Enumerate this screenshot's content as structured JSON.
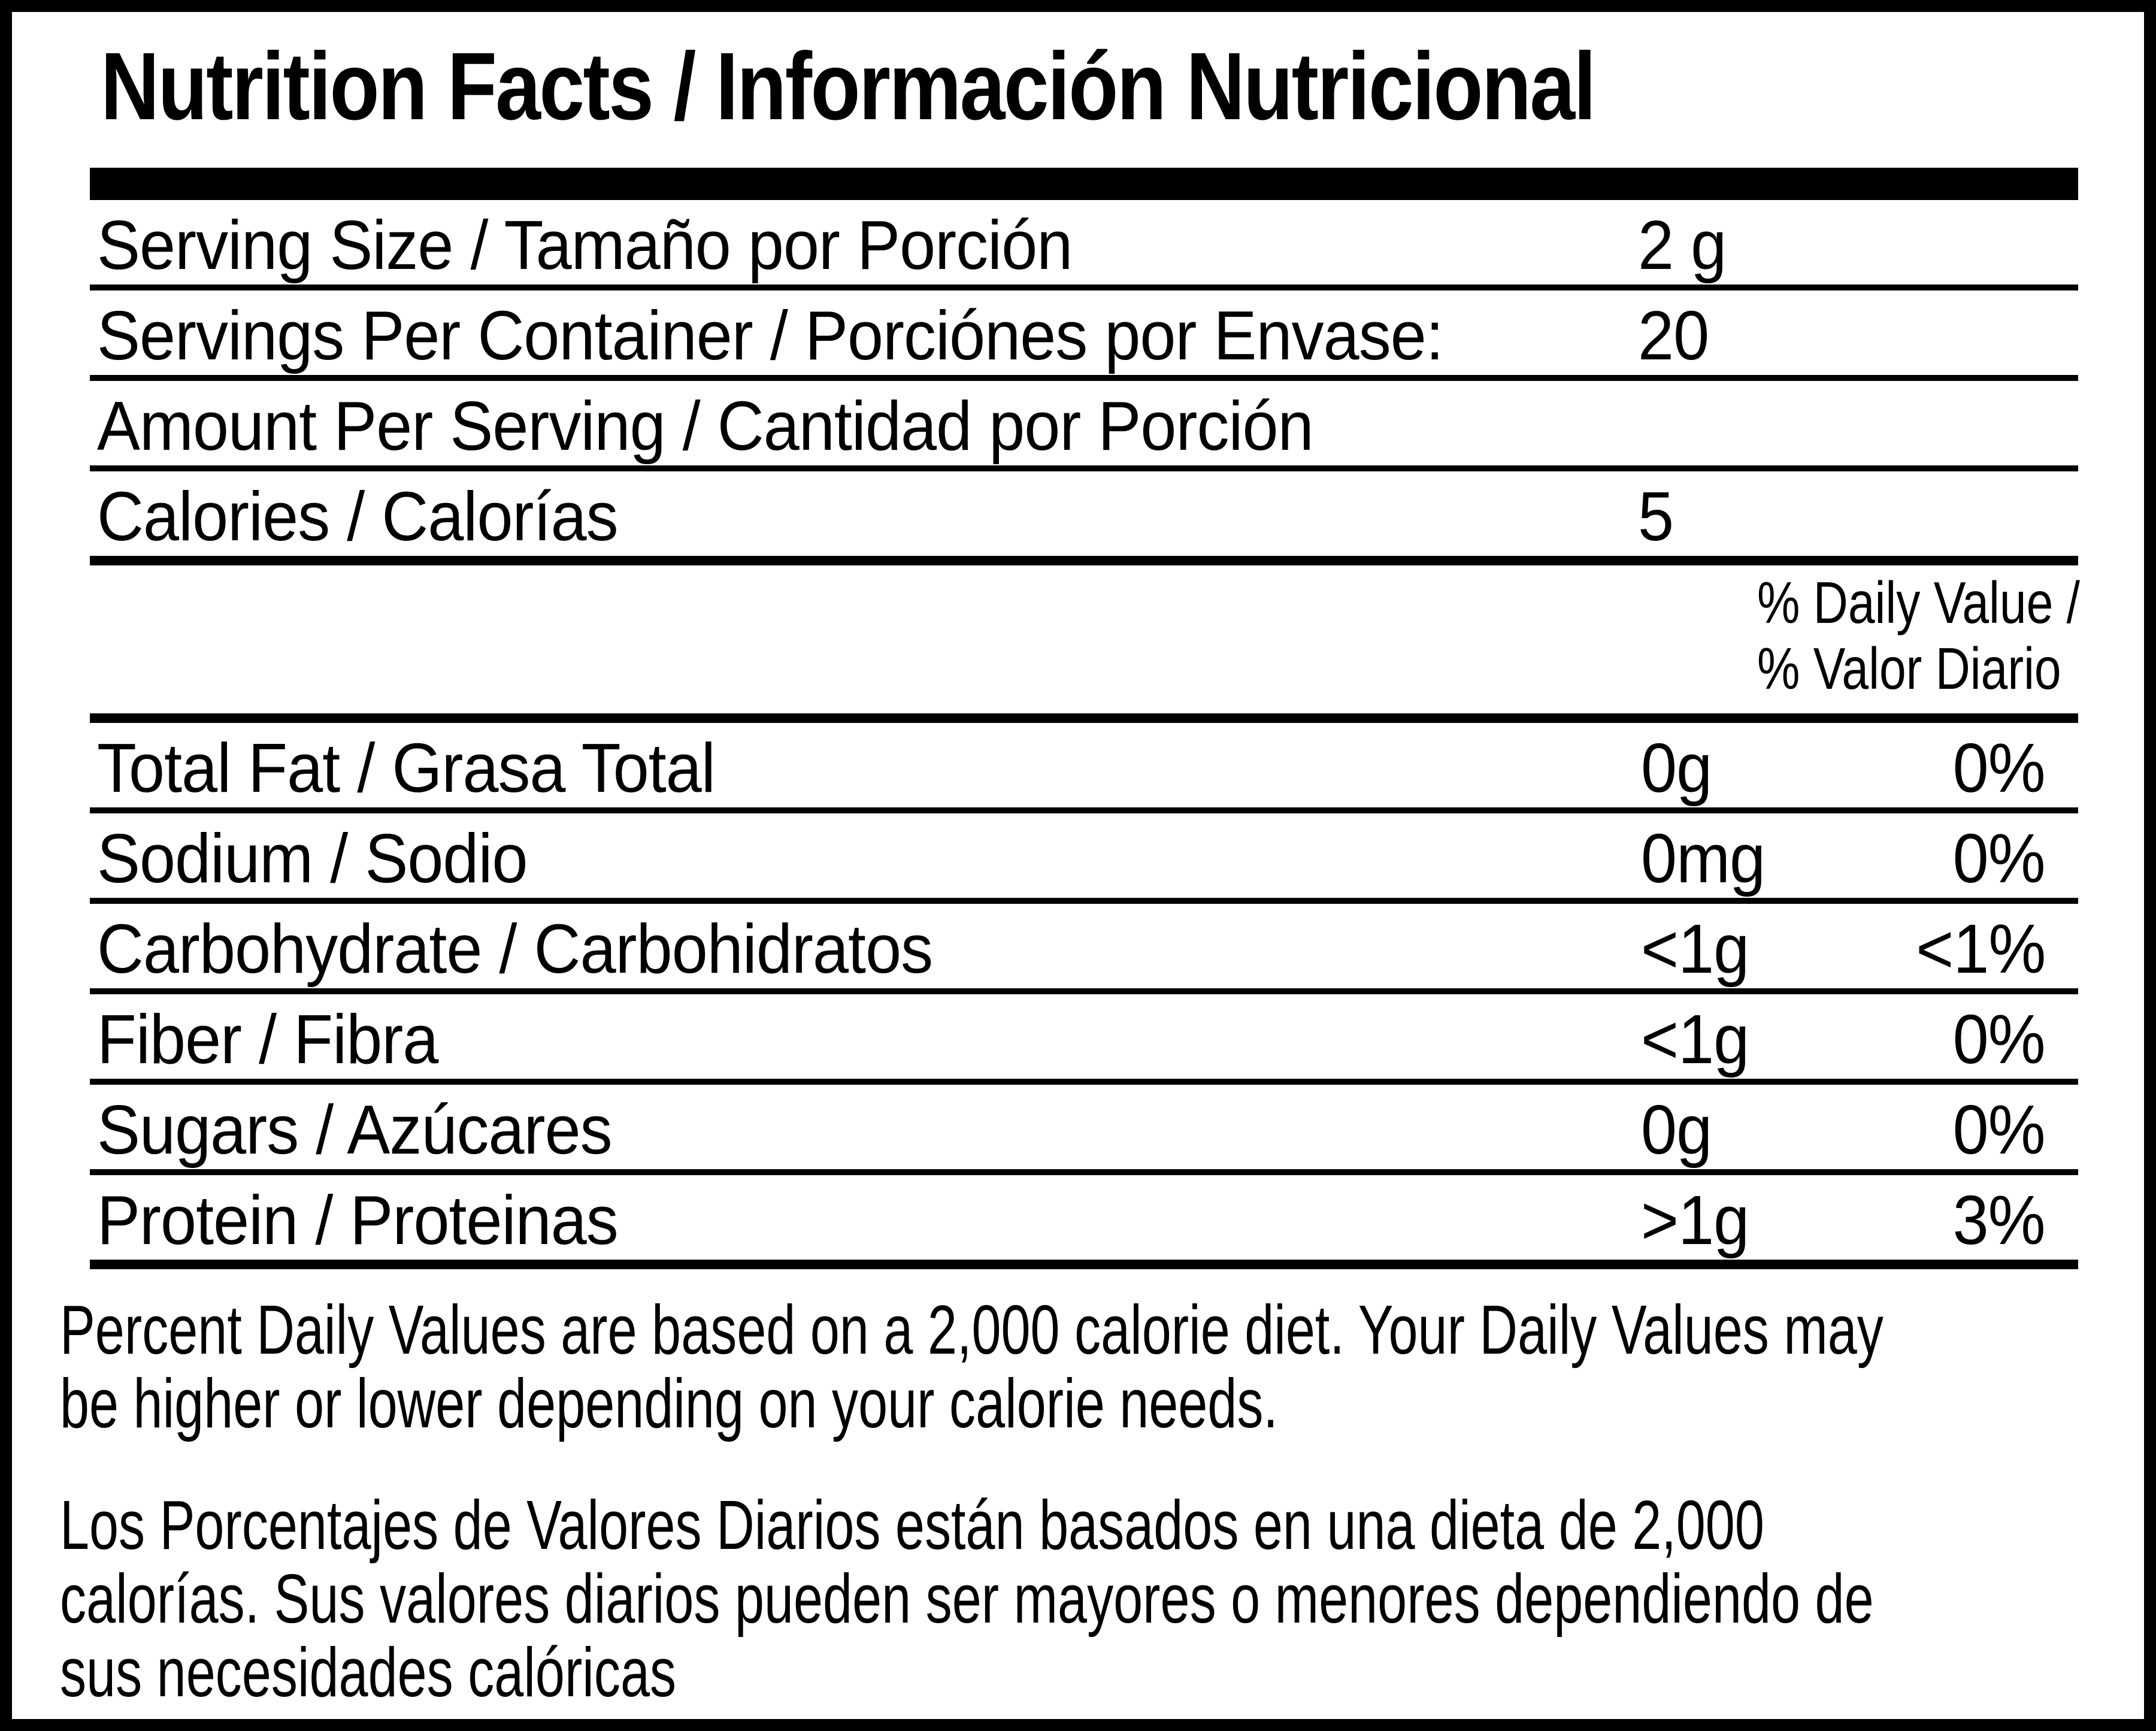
{
  "label": {
    "title": "Nutrition Facts / Información Nutricional",
    "colors": {
      "ink": "#000000",
      "paper": "#ffffff"
    },
    "serving_rows": [
      {
        "label": "Serving Size / Tamaño por Porción",
        "value": "2 g"
      },
      {
        "label": "Servings Per Container / Porciónes por Envase:",
        "value": "20"
      },
      {
        "label": "Amount Per Serving / Cantidad por Porción",
        "value": ""
      },
      {
        "label": "Calories / Calorías",
        "value": "5"
      }
    ],
    "daily_value_header": {
      "line1": "% Daily Value /",
      "line2": "% Valor Diario"
    },
    "nutrient_rows": [
      {
        "label": "Total Fat / Grasa Total",
        "amount": "0g",
        "daily_value": "0%"
      },
      {
        "label": "Sodium / Sodio",
        "amount": "0mg",
        "daily_value": "0%"
      },
      {
        "label": "Carbohydrate / Carbohidratos",
        "amount": "<1g",
        "daily_value": "<1%"
      },
      {
        "label": "Fiber / Fibra",
        "amount": "<1g",
        "daily_value": "0%"
      },
      {
        "label": "Sugars / Azúcares",
        "amount": "0g",
        "daily_value": "0%"
      },
      {
        "label": "Protein / Proteinas",
        "amount": ">1g",
        "daily_value": "3%"
      }
    ],
    "footnote_en": {
      "line1": "Percent Daily Values are based on a 2,000 calorie diet. Your Daily Values may",
      "line2": "be higher or lower depending on your calorie needs."
    },
    "footnote_es": {
      "line1": "Los Porcentajes de Valores Diarios están basados en una dieta de 2,000",
      "line2": "calorías. Sus valores diarios pueden ser mayores o menores dependiendo de",
      "line3": "sus necesidades calóricas"
    }
  }
}
